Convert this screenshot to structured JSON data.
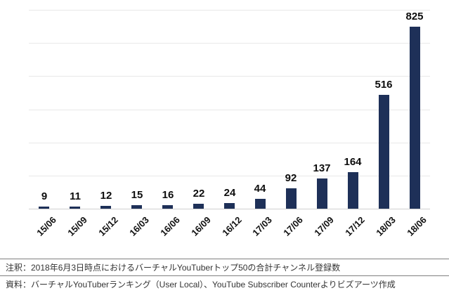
{
  "chart_data": {
    "type": "bar",
    "categories": [
      "15/06",
      "15/09",
      "15/12",
      "16/03",
      "16/06",
      "16/09",
      "16/12",
      "17/03",
      "17/06",
      "17/09",
      "17/12",
      "18/03",
      "18/06"
    ],
    "values": [
      9,
      11,
      12,
      15,
      16,
      22,
      24,
      44,
      92,
      137,
      164,
      516,
      825
    ],
    "title": "",
    "xlabel": "",
    "ylabel": "",
    "ylim": [
      0,
      900
    ],
    "grid": true,
    "grid_interval": 150,
    "legend": null,
    "bar_color": "#1e3058",
    "gridline_color": "#e8e8e8",
    "value_label_color": "#0d0d0d"
  },
  "notes": {
    "annotation": "注釈：2018年6月3日時点におけるバーチャルYouTuberトップ50の合計チャンネル登録数",
    "source": "資料：バーチャルYouTuberランキング（User Local）、YouTube Subscriber Counterよりビズアーツ作成"
  }
}
